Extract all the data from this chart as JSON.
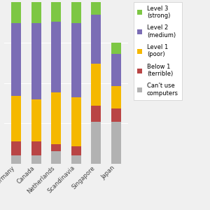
{
  "categories": [
    "Germany",
    "Canada",
    "Netherlands",
    "Scandinavia",
    "Singapore",
    "Japan"
  ],
  "levels": {
    "Can't use\ncomputers": [
      5,
      5,
      8,
      5,
      26,
      26
    ],
    "Below 1\n(terrible)": [
      9,
      9,
      4,
      6,
      10,
      8
    ],
    "Level 1\n(poor)": [
      28,
      26,
      32,
      30,
      26,
      14
    ],
    "Level 2\n(medium)": [
      45,
      47,
      44,
      46,
      30,
      20
    ],
    "Level 3\n(strong)": [
      13,
      13,
      12,
      13,
      8,
      7
    ]
  },
  "colors": {
    "Can't use\ncomputers": "#b2b2b2",
    "Below 1\n(terrible)": "#b94545",
    "Level 1\n(poor)": "#f5b800",
    "Level 2\n(medium)": "#7b6db5",
    "Level 3\n(strong)": "#7dc744"
  },
  "legend_labels": [
    "Level 3\n(strong)",
    "Level 2\n(medium)",
    "Level 1\n(poor)",
    "Below 1\n(terrible)",
    "Can’t use\ncomputers"
  ],
  "legend_colors": [
    "#7dc744",
    "#7b6db5",
    "#f5b800",
    "#b94545",
    "#b2b2b2"
  ],
  "bg_color": "#f0f0f0",
  "bar_width": 0.5,
  "ylim": [
    0,
    100
  ]
}
